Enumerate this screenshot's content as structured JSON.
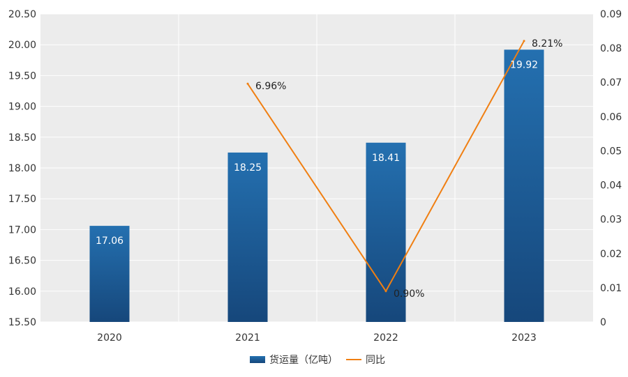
{
  "chart_data": {
    "type": "bar",
    "categories": [
      "2020",
      "2021",
      "2022",
      "2023"
    ],
    "series": [
      {
        "name": "货运量（亿吨）",
        "type": "bar",
        "axis": "left",
        "values": [
          17.06,
          18.25,
          18.41,
          19.92
        ],
        "labels": [
          "17.06",
          "18.25",
          "18.41",
          "19.92"
        ]
      },
      {
        "name": "同比",
        "type": "line",
        "axis": "right",
        "values": [
          null,
          0.0696,
          0.009,
          0.0821
        ],
        "labels": [
          "",
          "6.96%",
          "0.90%",
          "8.21%"
        ]
      }
    ],
    "ylim_left": [
      15.5,
      20.5
    ],
    "yticks_left": [
      "15.50",
      "16.00",
      "16.50",
      "17.00",
      "17.50",
      "18.00",
      "18.50",
      "19.00",
      "19.50",
      "20.00",
      "20.50"
    ],
    "ylim_right": [
      0,
      0.09
    ],
    "yticks_right": [
      "0",
      "0.01",
      "0.02",
      "0.03",
      "0.04",
      "0.05",
      "0.06",
      "0.07",
      "0.08",
      "0.09"
    ],
    "grid": true,
    "legend_position": "bottom",
    "colors": {
      "bar_top": "#2470b0",
      "bar_bottom": "#16477b",
      "line": "#f07f12",
      "plot_bg": "#ececec",
      "grid": "#ffffff"
    }
  }
}
